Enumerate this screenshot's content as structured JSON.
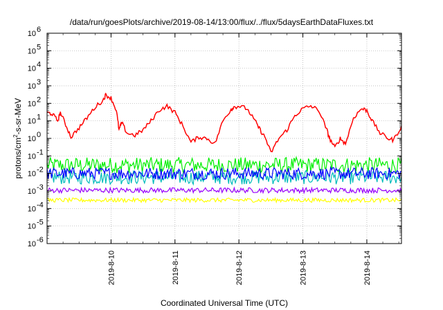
{
  "chart_data": {
    "type": "line",
    "title": "/data/run/goesPlots/archive/2019-08-14/13:00/flux/../flux/5daysEarthDataFluxes.txt",
    "xlabel": "Coordinated Universal Time (UTC)",
    "ylabel_parts": [
      "protons/cm",
      "2",
      "-s-sr-MeV"
    ],
    "yscale": "log",
    "ylim_exponents": [
      -6,
      6
    ],
    "y_tick_labels": [
      "10",
      "10",
      "10",
      "10",
      "10",
      "10",
      "10",
      "10",
      "10",
      "10",
      "10",
      "10",
      "10"
    ],
    "y_tick_exponents": [
      "-6",
      "-5",
      "-4",
      "-3",
      "-2",
      "-1",
      "0",
      "1",
      "2",
      "3",
      "4",
      "5",
      "6"
    ],
    "x_start": "2019-08-09T00:00",
    "x_end": "2019-08-14T13:00",
    "x_tick_labels": [
      "2019-8-10",
      "2019-8-11",
      "2019-8-12",
      "2019-8-13",
      "2019-8-14"
    ],
    "grid": true,
    "series": [
      {
        "color": "#ff0000",
        "x": [
          "2019-08-09T00:00",
          "2019-08-09T02:00",
          "2019-08-09T04:00",
          "2019-08-09T05:00",
          "2019-08-09T07:00",
          "2019-08-09T09:00",
          "2019-08-09T12:00",
          "2019-08-09T15:00",
          "2019-08-09T18:00",
          "2019-08-09T21:00",
          "2019-08-09T22:00",
          "2019-08-10T00:00",
          "2019-08-10T02:00",
          "2019-08-10T03:00",
          "2019-08-10T04:00",
          "2019-08-10T06:00",
          "2019-08-10T09:00",
          "2019-08-10T12:00",
          "2019-08-10T15:00",
          "2019-08-10T18:00",
          "2019-08-10T21:00",
          "2019-08-11T00:00",
          "2019-08-11T03:00",
          "2019-08-11T06:00",
          "2019-08-11T09:00",
          "2019-08-11T12:00",
          "2019-08-11T15:00",
          "2019-08-11T18:00",
          "2019-08-11T21:00",
          "2019-08-11T22:00",
          "2019-08-12T00:00",
          "2019-08-12T03:00",
          "2019-08-12T06:00",
          "2019-08-12T08:00",
          "2019-08-12T10:00",
          "2019-08-12T12:00",
          "2019-08-12T15:00",
          "2019-08-12T18:00",
          "2019-08-12T21:00",
          "2019-08-13T00:00",
          "2019-08-13T03:00",
          "2019-08-13T06:00",
          "2019-08-13T09:00",
          "2019-08-13T10:00",
          "2019-08-13T12:00",
          "2019-08-13T14:00",
          "2019-08-13T16:00",
          "2019-08-13T19:00",
          "2019-08-13T22:00",
          "2019-08-14T00:00",
          "2019-08-14T02:00",
          "2019-08-14T05:00",
          "2019-08-14T08:00",
          "2019-08-14T10:00",
          "2019-08-14T13:00"
        ],
        "y": [
          30,
          25,
          10,
          30,
          6,
          1.2,
          4,
          15,
          60,
          150,
          300,
          200,
          40,
          3,
          8,
          2,
          1.5,
          3,
          10,
          40,
          70,
          30,
          5,
          0.6,
          1.2,
          1,
          0.5,
          10,
          45,
          60,
          70,
          50,
          10,
          3,
          1,
          0.15,
          1,
          3,
          20,
          50,
          70,
          40,
          3,
          1,
          0.3,
          1,
          0.5,
          15,
          50,
          40,
          10,
          2,
          1,
          0.8,
          5
        ]
      },
      {
        "color": "#00ee00",
        "base": 0.03,
        "spread": 0.45
      },
      {
        "color": "#00bbbb",
        "base": 0.006,
        "spread": 0.4
      },
      {
        "color": "#0000ff",
        "base": 0.01,
        "spread": 0.35
      },
      {
        "color": "#9900ff",
        "base": 0.0011,
        "spread": 0.15
      },
      {
        "color": "#ffff00",
        "base": 0.0003,
        "spread": 0.12
      }
    ]
  }
}
